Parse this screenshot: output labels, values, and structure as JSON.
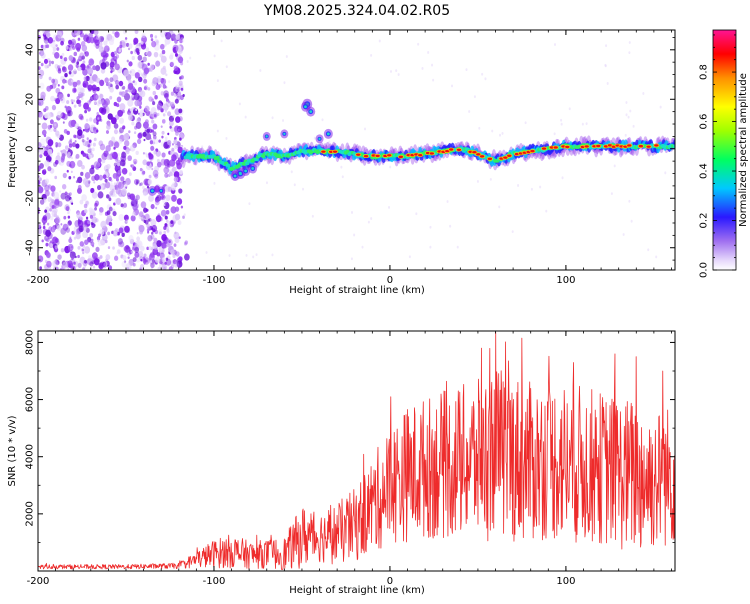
{
  "title": "YM08.2025.324.04.02.R05",
  "colors": {
    "snr_line": "#ee2b2b",
    "spec_low": "#7a12e8",
    "spec_mid": "#18e0c8",
    "spec_high": "#ee1010",
    "colorbar_stops": [
      "#ffffff",
      "#c9a8f5",
      "#7a12e8",
      "#1a1aff",
      "#00d8ff",
      "#00ff40",
      "#ffff00",
      "#ff8c00",
      "#ff0000",
      "#ff1493"
    ]
  },
  "chart_data": [
    {
      "type": "heatmap",
      "name": "spectrogram",
      "xlabel": "Height of straight line (km)",
      "ylabel": "Frequency (Hz)",
      "xlim": [
        -200,
        162
      ],
      "ylim": [
        -49,
        48
      ],
      "xticks": [
        -200,
        -100,
        0,
        100
      ],
      "yticks": [
        -40,
        -20,
        0,
        20,
        40
      ],
      "ridge_x": [
        -120,
        -110,
        -100,
        -90,
        -80,
        -70,
        -60,
        -50,
        -40,
        -30,
        -20,
        -10,
        0,
        10,
        20,
        30,
        40,
        50,
        60,
        70,
        80,
        90,
        100,
        110,
        120,
        130,
        140,
        150,
        162
      ],
      "ridge_freq": [
        -3,
        -3,
        -3,
        -8,
        -5,
        -2,
        -3,
        -1,
        -1,
        -1,
        -2,
        -3,
        -3,
        -3,
        -2,
        -1,
        0,
        -2,
        -5,
        -2,
        -1,
        0,
        1,
        1,
        1,
        1,
        1,
        1,
        1
      ],
      "noise_region_x": [
        -200,
        -118
      ],
      "colorbar": {
        "label": "Normalized spectral amplitude",
        "range": [
          0.0,
          0.97
        ],
        "ticks": [
          0.0,
          0.2,
          0.4,
          0.6,
          0.8
        ]
      }
    },
    {
      "type": "line",
      "name": "snr",
      "xlabel": "Height of straight line (km)",
      "ylabel": "SNR (10 * v/v)",
      "xlim": [
        -200,
        162
      ],
      "ylim": [
        0,
        8400
      ],
      "xticks": [
        -200,
        -100,
        0,
        100
      ],
      "yticks": [
        2000,
        4000,
        6000,
        8000
      ],
      "envelope_x": [
        -200,
        -150,
        -120,
        -110,
        -100,
        -90,
        -80,
        -70,
        -60,
        -50,
        -40,
        -30,
        -20,
        -10,
        0,
        10,
        20,
        30,
        40,
        50,
        60,
        70,
        80,
        90,
        100,
        110,
        120,
        130,
        140,
        150,
        162
      ],
      "envelope_mean": [
        150,
        150,
        180,
        400,
        600,
        700,
        550,
        600,
        600,
        1200,
        1200,
        1300,
        1600,
        2300,
        3000,
        3400,
        3600,
        3700,
        3800,
        3900,
        4100,
        4000,
        3800,
        3900,
        3800,
        3700,
        3600,
        3400,
        3300,
        3200,
        3400
      ],
      "envelope_amp": [
        80,
        80,
        100,
        300,
        500,
        600,
        500,
        500,
        600,
        1100,
        900,
        1100,
        1300,
        1700,
        2100,
        2400,
        2500,
        2600,
        2700,
        2800,
        3100,
        3000,
        2800,
        2800,
        2900,
        2800,
        2700,
        2700,
        2800,
        2500,
        2500
      ],
      "peaks": [
        [
          60,
          8350
        ],
        [
          75,
          8150
        ],
        [
          52,
          7800
        ],
        [
          128,
          7600
        ],
        [
          140,
          7500
        ],
        [
          155,
          7000
        ]
      ]
    }
  ]
}
